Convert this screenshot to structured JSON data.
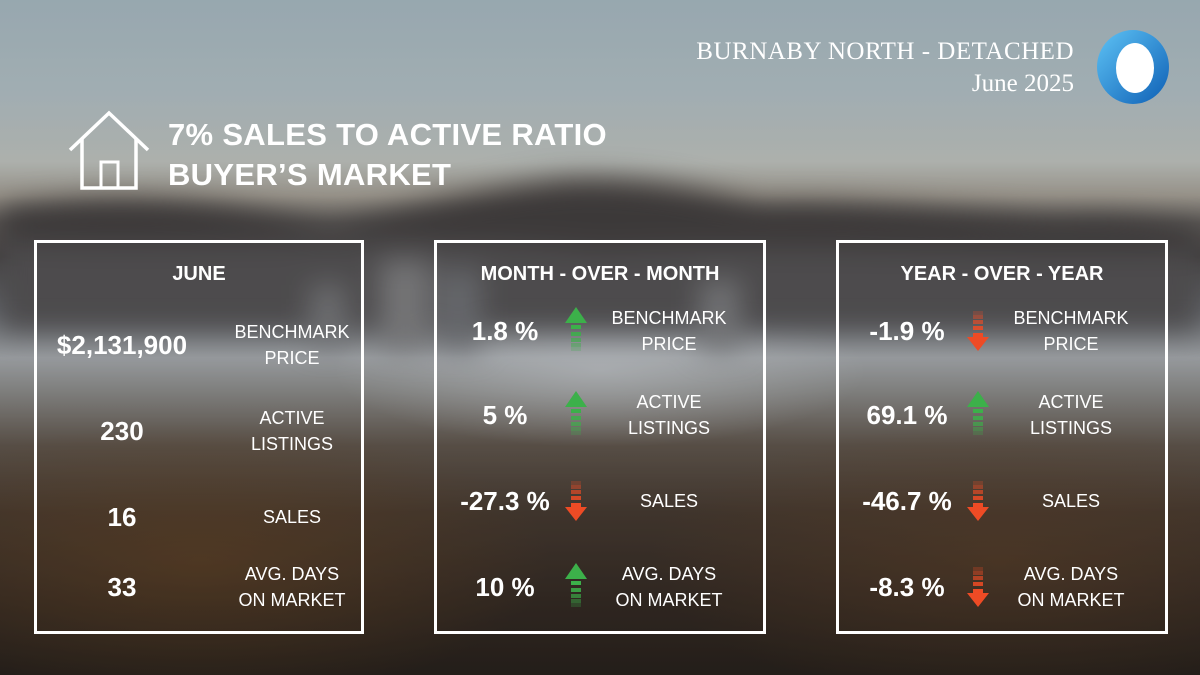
{
  "brand": {
    "title": "BURNABY NORTH - DETACHED",
    "date": "June 2025"
  },
  "headline": {
    "line1": "7% SALES TO ACTIVE RATIO",
    "line2": "BUYER’S MARKET"
  },
  "colors": {
    "up": "#3cb04a",
    "down": "#ee4b25",
    "logo": "#1e8fd9"
  },
  "june": {
    "title": "JUNE",
    "rows": [
      {
        "value": "$2,131,900",
        "label1": "BENCHMARK",
        "label2": "PRICE"
      },
      {
        "value": "230",
        "label1": "ACTIVE",
        "label2": "LISTINGS"
      },
      {
        "value": "16",
        "label1": "SALES",
        "label2": ""
      },
      {
        "value": "33",
        "label1": "AVG. DAYS",
        "label2": "ON MARKET"
      }
    ]
  },
  "mom": {
    "title": "MONTH - OVER - MONTH",
    "rows": [
      {
        "value": "1.8 %",
        "direction": "up",
        "label1": "BENCHMARK",
        "label2": "PRICE"
      },
      {
        "value": "5 %",
        "direction": "up",
        "label1": "ACTIVE",
        "label2": "LISTINGS"
      },
      {
        "value": "-27.3 %",
        "direction": "down",
        "label1": "SALES",
        "label2": ""
      },
      {
        "value": "10 %",
        "direction": "up",
        "label1": "AVG. DAYS",
        "label2": "ON MARKET"
      }
    ]
  },
  "yoy": {
    "title": "YEAR - OVER - YEAR",
    "rows": [
      {
        "value": "-1.9 %",
        "direction": "down",
        "label1": "BENCHMARK",
        "label2": "PRICE"
      },
      {
        "value": "69.1 %",
        "direction": "up",
        "label1": "ACTIVE",
        "label2": "LISTINGS"
      },
      {
        "value": "-46.7 %",
        "direction": "down",
        "label1": "SALES",
        "label2": ""
      },
      {
        "value": "-8.3 %",
        "direction": "down",
        "label1": "AVG. DAYS",
        "label2": "ON MARKET"
      }
    ]
  }
}
